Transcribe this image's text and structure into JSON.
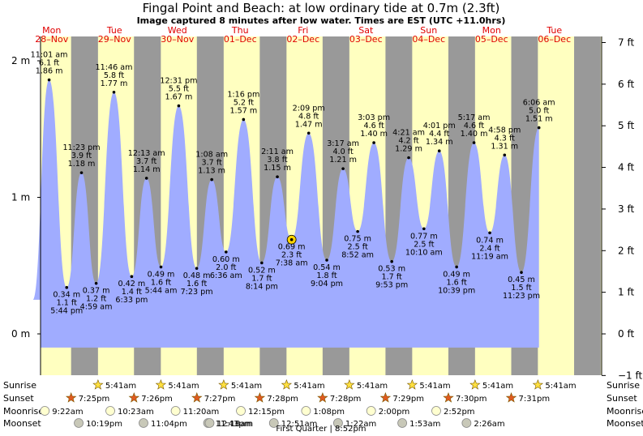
{
  "title": "Fingal Point and Beach: at low  ordinary tide at 0.7m (2.3ft)",
  "subtitle": "Image captured 8 minutes after low water. Times are EST (UTC +11.0hrs)",
  "chart_data": {
    "type": "area",
    "days": [
      {
        "name": "Mon",
        "date": "28–Nov"
      },
      {
        "name": "Tue",
        "date": "29–Nov"
      },
      {
        "name": "Wed",
        "date": "30–Nov"
      },
      {
        "name": "Thu",
        "date": "01–Dec"
      },
      {
        "name": "Fri",
        "date": "02–Dec"
      },
      {
        "name": "Sat",
        "date": "03–Dec"
      },
      {
        "name": "Sun",
        "date": "04–Dec"
      },
      {
        "name": "Mon",
        "date": "05–Dec"
      },
      {
        "name": "Tue",
        "date": "06–Dec"
      }
    ],
    "left_axis_ticks": [
      "2 m",
      "1 m",
      "0 m"
    ],
    "right_axis_ticks": [
      "7 ft",
      "6 ft",
      "5 ft",
      "4 ft",
      "3 ft",
      "2 ft",
      "1 ft",
      "0 ft",
      "−1 ft"
    ],
    "ylim_m": [
      -0.3,
      2.1
    ],
    "tides": [
      {
        "type": "high",
        "day": 0,
        "time": "11:01 am",
        "ft": "6.1 ft",
        "m": "1.86 m",
        "height": 1.86
      },
      {
        "type": "low",
        "day": 0,
        "time": "5:44 pm",
        "ft": "1.1 ft",
        "m": "0.34 m",
        "height": 0.34
      },
      {
        "type": "high",
        "day": 0,
        "time": "11:23 pm",
        "ft": "3.9 ft",
        "m": "1.18 m",
        "height": 1.18
      },
      {
        "type": "low",
        "day": 1,
        "time": "4:59 am",
        "ft": "1.2 ft",
        "m": "0.37 m",
        "height": 0.37
      },
      {
        "type": "high",
        "day": 1,
        "time": "11:46 am",
        "ft": "5.8 ft",
        "m": "1.77 m",
        "height": 1.77
      },
      {
        "type": "low",
        "day": 1,
        "time": "6:33 pm",
        "ft": "1.4 ft",
        "m": "0.42 m",
        "height": 0.42
      },
      {
        "type": "high",
        "day": 2,
        "time": "12:13 am",
        "ft": "3.7 ft",
        "m": "1.14 m",
        "height": 1.14
      },
      {
        "type": "low",
        "day": 2,
        "time": "5:44 am",
        "ft": "1.6 ft",
        "m": "0.49 m",
        "height": 0.49
      },
      {
        "type": "high",
        "day": 2,
        "time": "12:31 pm",
        "ft": "5.5 ft",
        "m": "1.67 m",
        "height": 1.67
      },
      {
        "type": "low",
        "day": 2,
        "time": "7:23 pm",
        "ft": "1.6 ft",
        "m": "0.48 m",
        "height": 0.48
      },
      {
        "type": "high",
        "day": 3,
        "time": "1:08 am",
        "ft": "3.7 ft",
        "m": "1.13 m",
        "height": 1.13
      },
      {
        "type": "low",
        "day": 3,
        "time": "6:36 am",
        "ft": "2.0 ft",
        "m": "0.60 m",
        "height": 0.6
      },
      {
        "type": "high",
        "day": 3,
        "time": "1:16 pm",
        "ft": "5.2 ft",
        "m": "1.57 m",
        "height": 1.57
      },
      {
        "type": "low",
        "day": 3,
        "time": "8:14 pm",
        "ft": "1.7 ft",
        "m": "0.52 m",
        "height": 0.52
      },
      {
        "type": "high",
        "day": 4,
        "time": "2:11 am",
        "ft": "3.8 ft",
        "m": "1.15 m",
        "height": 1.15
      },
      {
        "type": "low",
        "day": 4,
        "time": "7:38 am",
        "ft": "2.3 ft",
        "m": "0.69 m",
        "height": 0.69
      },
      {
        "type": "high",
        "day": 4,
        "time": "2:09 pm",
        "ft": "4.8 ft",
        "m": "1.47 m",
        "height": 1.47
      },
      {
        "type": "low",
        "day": 4,
        "time": "9:04 pm",
        "ft": "1.8 ft",
        "m": "0.54 m",
        "height": 0.54
      },
      {
        "type": "high",
        "day": 5,
        "time": "3:17 am",
        "ft": "4.0 ft",
        "m": "1.21 m",
        "height": 1.21
      },
      {
        "type": "low",
        "day": 5,
        "time": "8:52 am",
        "ft": "2.5 ft",
        "m": "0.75 m",
        "height": 0.75
      },
      {
        "type": "high",
        "day": 5,
        "time": "3:03 pm",
        "ft": "4.6 ft",
        "m": "1.40 m",
        "height": 1.4
      },
      {
        "type": "low",
        "day": 5,
        "time": "9:53 pm",
        "ft": "1.7 ft",
        "m": "0.53 m",
        "height": 0.53
      },
      {
        "type": "high",
        "day": 6,
        "time": "4:21 am",
        "ft": "4.2 ft",
        "m": "1.29 m",
        "height": 1.29
      },
      {
        "type": "low",
        "day": 6,
        "time": "10:10 am",
        "ft": "2.5 ft",
        "m": "0.77 m",
        "height": 0.77
      },
      {
        "type": "high",
        "day": 6,
        "time": "4:01 pm",
        "ft": "4.4 ft",
        "m": "1.34 m",
        "height": 1.34
      },
      {
        "type": "low",
        "day": 6,
        "time": "10:39 pm",
        "ft": "1.6 ft",
        "m": "0.49 m",
        "height": 0.49
      },
      {
        "type": "high",
        "day": 7,
        "time": "5:17 am",
        "ft": "4.6 ft",
        "m": "1.40 m",
        "height": 1.4
      },
      {
        "type": "low",
        "day": 7,
        "time": "11:19 am",
        "ft": "2.4 ft",
        "m": "0.74 m",
        "height": 0.74
      },
      {
        "type": "high",
        "day": 7,
        "time": "4:58 pm",
        "ft": "4.3 ft",
        "m": "1.31 m",
        "height": 1.31
      },
      {
        "type": "low",
        "day": 7,
        "time": "11:23 pm",
        "ft": "1.5 ft",
        "m": "0.45 m",
        "height": 0.45
      },
      {
        "type": "high",
        "day": 8,
        "time": "6:06 am",
        "ft": "5.0 ft",
        "m": "1.51 m",
        "height": 1.51
      }
    ],
    "current_index": 15,
    "rows": [
      {
        "label": "Sunrise",
        "icon": "sun-icon",
        "items": [
          {
            "day": 1,
            "time": "5:41am"
          },
          {
            "day": 2,
            "time": "5:41am"
          },
          {
            "day": 3,
            "time": "5:41am"
          },
          {
            "day": 4,
            "time": "5:41am"
          },
          {
            "day": 5,
            "time": "5:41am"
          },
          {
            "day": 6,
            "time": "5:41am"
          },
          {
            "day": 7,
            "time": "5:41am"
          },
          {
            "day": 8,
            "time": "5:41am"
          }
        ]
      },
      {
        "label": "Sunset",
        "icon": "sunset-icon",
        "items": [
          {
            "day": 0,
            "time": "7:25pm"
          },
          {
            "day": 1,
            "time": "7:26pm"
          },
          {
            "day": 2,
            "time": "7:27pm"
          },
          {
            "day": 3,
            "time": "7:28pm"
          },
          {
            "day": 4,
            "time": "7:28pm"
          },
          {
            "day": 5,
            "time": "7:29pm"
          },
          {
            "day": 6,
            "time": "7:30pm"
          },
          {
            "day": 7,
            "time": "7:31pm"
          }
        ]
      },
      {
        "label": "Moonrise",
        "icon": "moonrise-icon",
        "items": [
          {
            "day": 0,
            "time": "9:22am"
          },
          {
            "day": 1,
            "time": "10:23am"
          },
          {
            "day": 2,
            "time": "11:20am"
          },
          {
            "day": 3,
            "time": "12:15pm"
          },
          {
            "day": 4,
            "time": "1:08pm"
          },
          {
            "day": 5,
            "time": "2:00pm"
          },
          {
            "day": 6,
            "time": "2:52pm"
          }
        ]
      },
      {
        "label": "Moonset",
        "icon": "moonset-icon",
        "items": [
          {
            "day": 0,
            "time": "10:19pm"
          },
          {
            "day": 1,
            "time": "11:04pm"
          },
          {
            "day": 2,
            "time": "11:43pm"
          },
          {
            "day": 3,
            "time": "12:18am"
          },
          {
            "day": 4,
            "time": "12:51am"
          },
          {
            "day": 5,
            "time": "1:22am"
          },
          {
            "day": 6,
            "time": "1:53am"
          },
          {
            "day": 7,
            "time": "2:26am"
          }
        ]
      }
    ],
    "moon_phase": "First Quarter | 8:52pm",
    "colors": {
      "day_bg": "#ffffc0",
      "night_bg": "#999999",
      "water": "#a0acff",
      "day_label": "#e00000"
    }
  }
}
